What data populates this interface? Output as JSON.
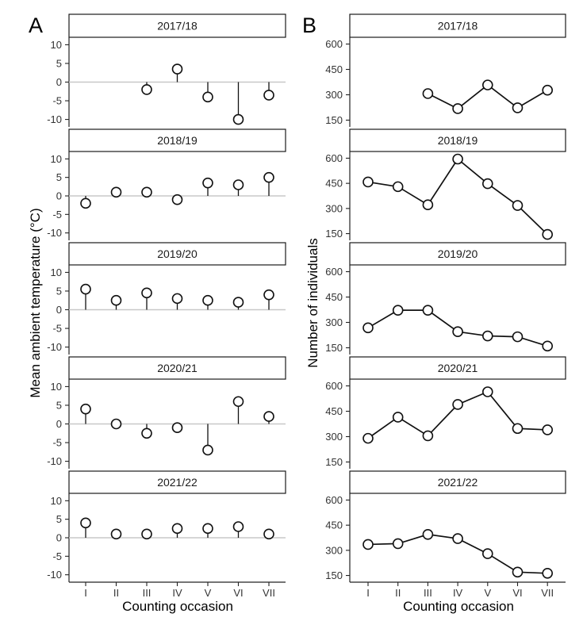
{
  "panel_letters": {
    "left": "A",
    "right": "B"
  },
  "axis_labels": {
    "left_y": "Mean ambient temperature (°C)",
    "right_y": "Number of individuals",
    "x": "Counting occasion"
  },
  "chart_data": [
    {
      "type": "lollipop",
      "panel": "A",
      "ylabel": "Mean ambient temperature (°C)",
      "xlabel": "Counting occasion",
      "ylim": [
        -12,
        12
      ],
      "yticks": [
        -10,
        -5,
        0,
        5,
        10
      ],
      "categories": [
        "I",
        "II",
        "III",
        "IV",
        "V",
        "VI",
        "VII"
      ],
      "facets": [
        {
          "title": "2017/18",
          "values": [
            null,
            null,
            -2,
            3.5,
            -4,
            -10,
            -3.5
          ]
        },
        {
          "title": "2018/19",
          "values": [
            -2,
            1,
            1,
            -1,
            3.5,
            3,
            5
          ]
        },
        {
          "title": "2019/20",
          "values": [
            5.5,
            2.5,
            4.5,
            3,
            2.5,
            2,
            4
          ]
        },
        {
          "title": "2020/21",
          "values": [
            4,
            0,
            -2.5,
            -1,
            -7,
            6,
            2
          ]
        },
        {
          "title": "2021/22",
          "values": [
            4,
            1,
            1,
            2.5,
            2.5,
            3,
            1
          ]
        }
      ],
      "zero_line_color": "#c8c8c8"
    },
    {
      "type": "line",
      "panel": "B",
      "ylabel": "Number of individuals",
      "xlabel": "Counting occasion",
      "ylim": [
        110,
        640
      ],
      "yticks": [
        150,
        300,
        450,
        600
      ],
      "categories": [
        "I",
        "II",
        "III",
        "IV",
        "V",
        "VI",
        "VII"
      ],
      "facets": [
        {
          "title": "2017/18",
          "values": [
            null,
            null,
            307,
            218,
            358,
            223,
            327
          ]
        },
        {
          "title": "2018/19",
          "values": [
            458,
            430,
            322,
            595,
            448,
            318,
            145
          ]
        },
        {
          "title": "2019/20",
          "values": [
            268,
            372,
            372,
            245,
            220,
            215,
            160
          ]
        },
        {
          "title": "2020/21",
          "values": [
            290,
            415,
            305,
            490,
            565,
            348,
            340
          ]
        },
        {
          "title": "2021/22",
          "values": [
            335,
            340,
            395,
            370,
            280,
            170,
            163
          ]
        }
      ]
    }
  ]
}
